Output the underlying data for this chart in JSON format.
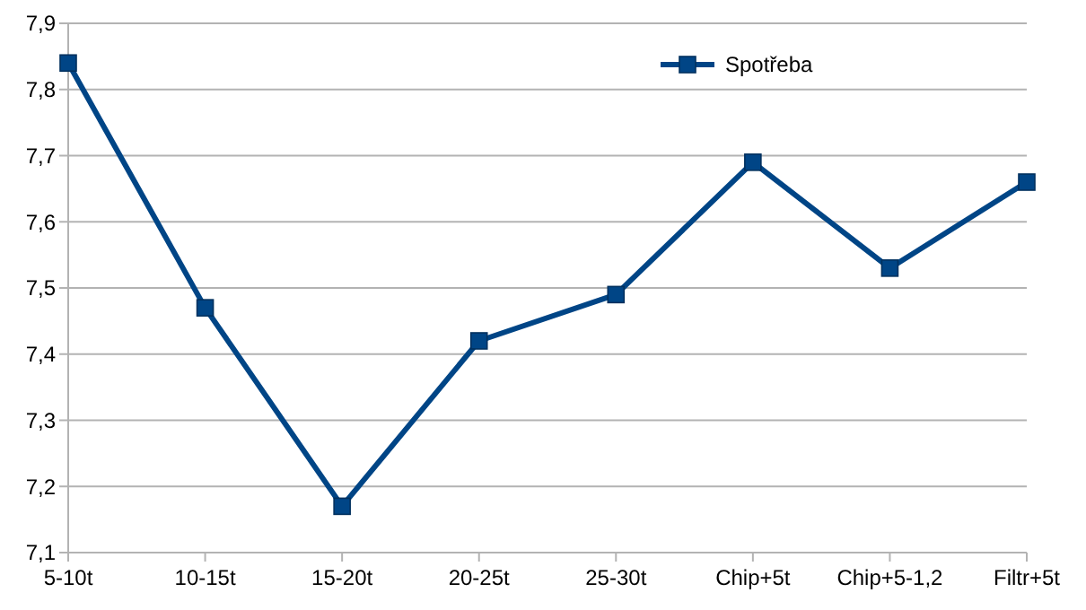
{
  "chart_data": {
    "type": "line",
    "categories": [
      "5-10t",
      "10-15t",
      "15-20t",
      "20-25t",
      "25-30t",
      "Chip+5t",
      "Chip+5-1,2",
      "Filtr+5t"
    ],
    "series": [
      {
        "name": "Spotřeba",
        "color": "#004586",
        "values": [
          7.84,
          7.47,
          7.17,
          7.42,
          7.49,
          7.69,
          7.53,
          7.66
        ]
      }
    ],
    "ylim": [
      7.1,
      7.9
    ],
    "yticks": [
      {
        "value": 7.1,
        "label": "7,1"
      },
      {
        "value": 7.2,
        "label": "7,2"
      },
      {
        "value": 7.3,
        "label": "7,3"
      },
      {
        "value": 7.4,
        "label": "7,4"
      },
      {
        "value": 7.5,
        "label": "7,5"
      },
      {
        "value": 7.6,
        "label": "7,6"
      },
      {
        "value": 7.7,
        "label": "7,7"
      },
      {
        "value": 7.8,
        "label": "7,8"
      },
      {
        "value": 7.9,
        "label": "7,9"
      }
    ],
    "grid": "y",
    "legend": "top right",
    "marker": "square",
    "line_style": "solid"
  }
}
